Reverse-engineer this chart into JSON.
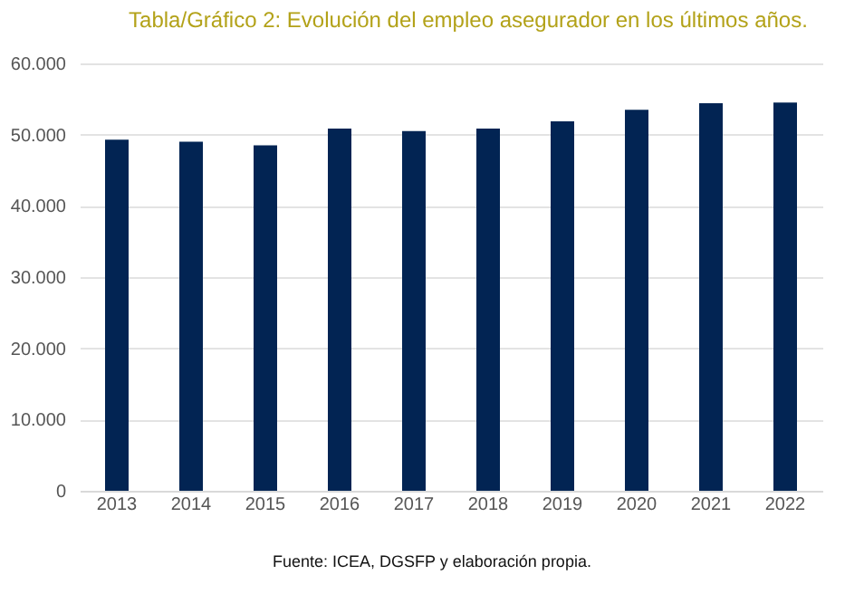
{
  "chart_data": {
    "type": "bar",
    "title": "Tabla/Gráfico 2: Evolución del empleo asegurador en los últimos años.",
    "categories": [
      "2013",
      "2014",
      "2015",
      "2016",
      "2017",
      "2018",
      "2019",
      "2020",
      "2021",
      "2022"
    ],
    "values": [
      49300,
      49000,
      48500,
      50850,
      50500,
      50850,
      51850,
      53500,
      54400,
      54500
    ],
    "color": "#022453",
    "ylim": [
      0,
      60000
    ],
    "yticks": [
      {
        "value": 0,
        "label": "0"
      },
      {
        "value": 10000,
        "label": "10.000"
      },
      {
        "value": 20000,
        "label": "20.000"
      },
      {
        "value": 30000,
        "label": "30.000"
      },
      {
        "value": 40000,
        "label": "40.000"
      },
      {
        "value": 50000,
        "label": "50.000"
      },
      {
        "value": 60000,
        "label": "60.000"
      }
    ],
    "grid": "y",
    "annotations": [
      "Fuente: ICEA, DGSFP y elaboración propia."
    ]
  }
}
